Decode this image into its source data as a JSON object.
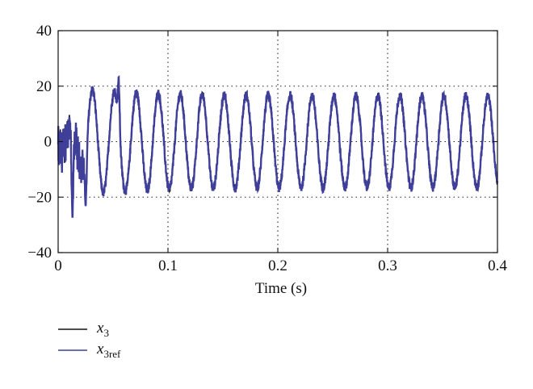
{
  "chart_data": {
    "type": "line",
    "title": "",
    "xlabel": "Time (s)",
    "ylabel": "",
    "xlim": [
      0,
      0.4
    ],
    "ylim": [
      -40,
      40
    ],
    "x_ticks": [
      0,
      0.1,
      0.2,
      0.3,
      0.4
    ],
    "x_tick_labels": [
      "0",
      "0.1",
      "0.2",
      "0.3",
      "0.4"
    ],
    "y_ticks": [
      -40,
      -20,
      0,
      20,
      40
    ],
    "y_tick_labels": [
      "−40",
      "−20",
      "0",
      "20",
      "40"
    ],
    "grid": true,
    "legend_position": "below-left",
    "signal": {
      "frequency_hz": 50,
      "amplitude_start": 19,
      "amplitude_steady": 16.5,
      "transient_end_s": 0.025,
      "transient_extremes": [
        {
          "x": 0.013,
          "y": -26
        },
        {
          "x": 0.025,
          "y": -22
        },
        {
          "x": 0.055,
          "y": 22
        }
      ]
    },
    "series": [
      {
        "name": "x",
        "subscript": "3",
        "color": "#111111"
      },
      {
        "name": "x",
        "subscript": "3ref",
        "color": "#3f3f9a"
      }
    ]
  }
}
